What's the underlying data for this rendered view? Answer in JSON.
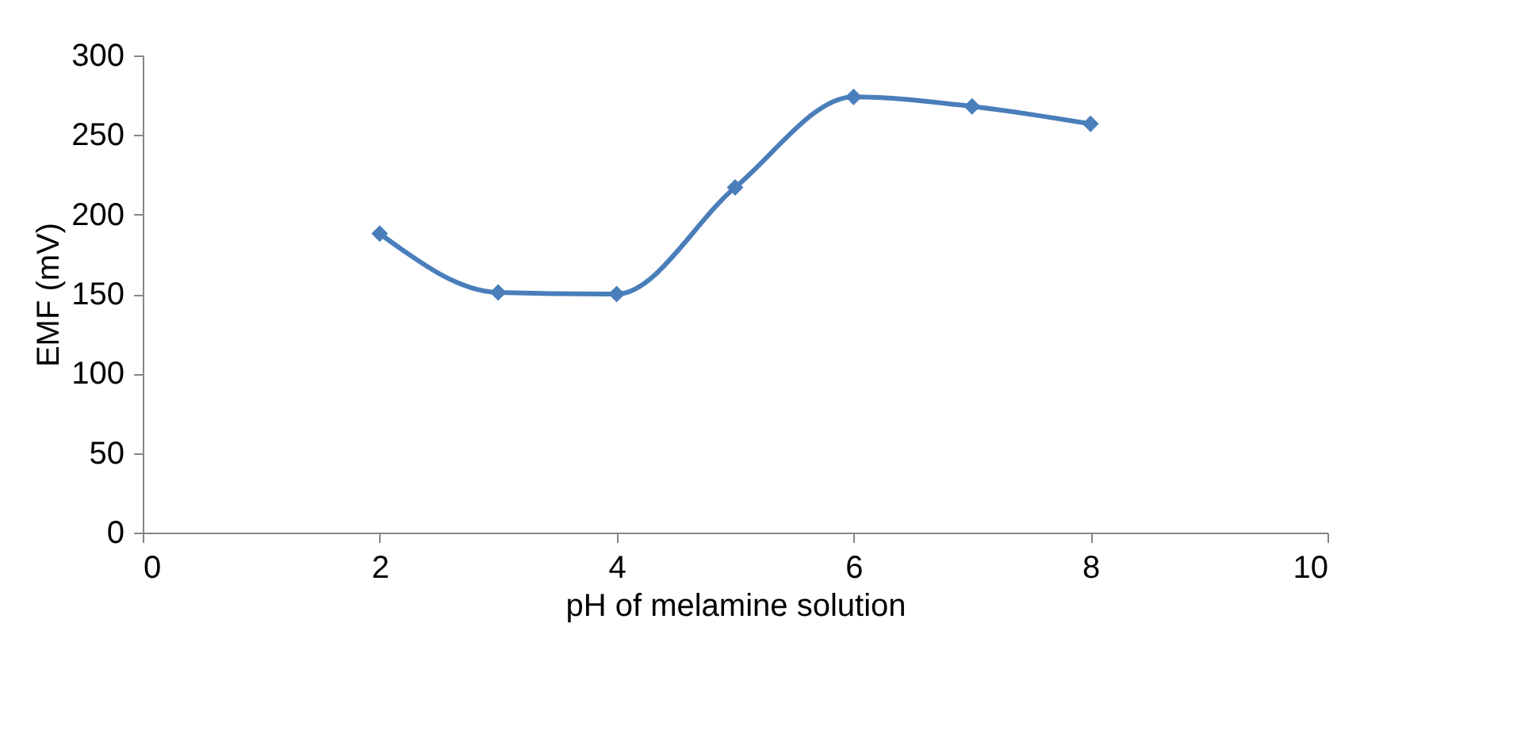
{
  "chart_data": {
    "type": "line",
    "xlabel": "pH of melamine solution",
    "ylabel": "EMF (mV)",
    "x": [
      2,
      3,
      4,
      5,
      6,
      7,
      8
    ],
    "series": [
      {
        "color": "#4a7ebb",
        "values": [
          188,
          151,
          150,
          217,
          274,
          268,
          257
        ]
      }
    ],
    "xlim": [
      0,
      10
    ],
    "xticks": [
      0,
      2,
      4,
      6,
      8,
      10
    ],
    "ylim": [
      0,
      300
    ],
    "yticks": [
      0,
      50,
      100,
      150,
      200,
      250,
      300
    ],
    "grid": false,
    "marker": "diamond",
    "line_style": "solid"
  }
}
